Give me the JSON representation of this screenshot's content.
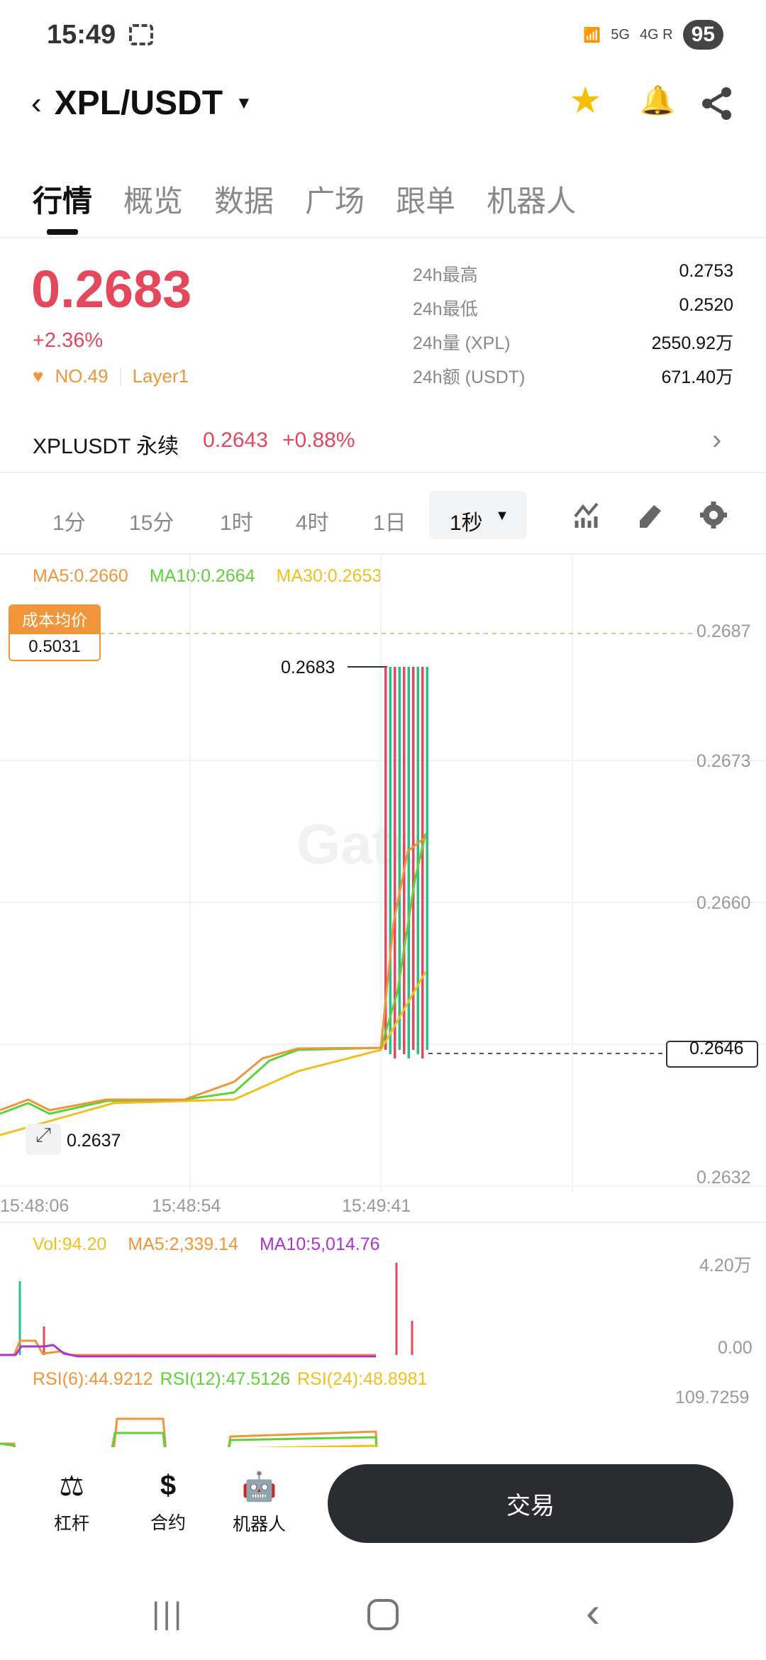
{
  "status": {
    "time": "15:49",
    "net1": "5G",
    "net2": "4G R",
    "battery": "95"
  },
  "header": {
    "pair": "XPL/USDT"
  },
  "tabs": [
    "行情",
    "概览",
    "数据",
    "广场",
    "跟单",
    "机器人"
  ],
  "ticker": {
    "price": "0.2683",
    "change": "+2.36%",
    "rank": "NO.49",
    "tag": "Layer1",
    "stats": [
      {
        "label": "24h最高",
        "value": "0.2753"
      },
      {
        "label": "24h最低",
        "value": "0.2520"
      },
      {
        "label": "24h量 (XPL)",
        "value": "2550.92万"
      },
      {
        "label": "24h额 (USDT)",
        "value": "671.40万"
      }
    ]
  },
  "perp": {
    "name": "XPLUSDT 永续",
    "price": "0.2643",
    "change": "+0.88%"
  },
  "intervals": [
    "1分",
    "15分",
    "1时",
    "4时",
    "1日",
    "1秒"
  ],
  "chart": {
    "ma": {
      "ma5": "MA5:0.2660",
      "ma10": "MA10:0.2664",
      "ma30": "MA30:0.2653"
    },
    "cost_label": "成本均价",
    "cost_value": "0.5031",
    "price_axis": [
      "0.2687",
      "0.2673",
      "0.2660",
      "0.2646",
      "0.2632"
    ],
    "high_label": "0.2683",
    "low_label": "0.2637",
    "last_price": "0.2646",
    "time_axis": [
      "15:48:06",
      "15:48:54",
      "15:49:41"
    ],
    "watermark": "Gate",
    "vol": {
      "vol": "Vol:94.20",
      "ma5": "MA5:2,339.14",
      "ma10": "MA10:5,014.76",
      "axis_top": "4.20万",
      "axis_bottom": "0.00"
    },
    "rsi": {
      "rsi6": "RSI(6):44.9212",
      "rsi12": "RSI(12):47.5126",
      "rsi24": "RSI(24):48.8981",
      "axis_top": "109.7259"
    },
    "colors": {
      "up": "#2ebd85",
      "down": "#e5475c",
      "ma5": "#f0953a",
      "ma10": "#5fd13a",
      "ma30": "#f0c020",
      "vol_ma10": "#b030d0"
    }
  },
  "bottom": {
    "leverage": "杠杆",
    "contract": "合约",
    "robot": "机器人",
    "trade": "交易"
  }
}
